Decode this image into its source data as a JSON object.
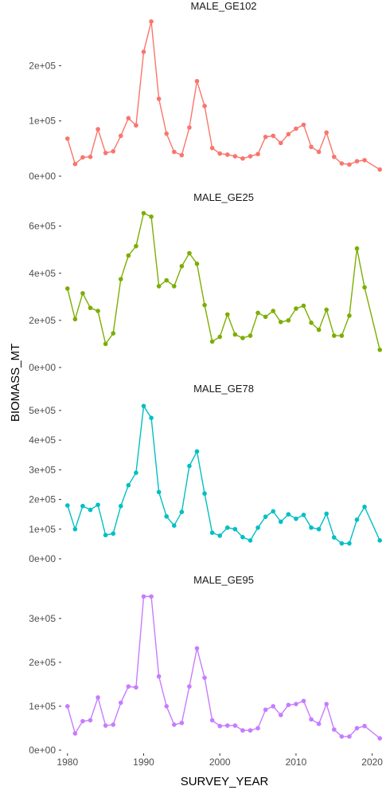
{
  "chart_data": {
    "type": "line",
    "layout": "faceted-vertical",
    "xlabel": "SURVEY_YEAR",
    "ylabel": "BIOMASS_MT",
    "x_ticks": [
      "1980",
      "1990",
      "2000",
      "2010",
      "2020"
    ],
    "xlim": [
      1979.5,
      2021.5
    ],
    "grid": false,
    "legend": "none",
    "x": [
      1980,
      1981,
      1982,
      1983,
      1984,
      1985,
      1986,
      1987,
      1988,
      1989,
      1990,
      1991,
      1992,
      1993,
      1994,
      1995,
      1996,
      1997,
      1998,
      1999,
      2000,
      2001,
      2002,
      2003,
      2004,
      2005,
      2006,
      2007,
      2008,
      2009,
      2010,
      2011,
      2012,
      2013,
      2014,
      2015,
      2016,
      2017,
      2018,
      2019,
      2021
    ],
    "series": [
      {
        "name": "MALE_GE102",
        "color": "#F8766D",
        "ylim": [
          0,
          290000
        ],
        "y_ticks": [
          {
            "value": 0,
            "label": "0e+00"
          },
          {
            "value": 100000,
            "label": "1e+05"
          },
          {
            "value": 200000,
            "label": "2e+05"
          }
        ],
        "values": [
          68000,
          22000,
          34000,
          35000,
          85000,
          42000,
          45000,
          73000,
          105000,
          92000,
          225000,
          280000,
          140000,
          77000,
          44000,
          38000,
          88000,
          172000,
          127000,
          51000,
          41000,
          39000,
          36000,
          32000,
          36000,
          40000,
          71000,
          73000,
          60000,
          76000,
          86000,
          93000,
          53000,
          44000,
          79000,
          35000,
          23000,
          21000,
          27000,
          29000,
          12000
        ]
      },
      {
        "name": "MALE_GE25",
        "color": "#7CAE00",
        "ylim": [
          0,
          680000
        ],
        "y_ticks": [
          {
            "value": 0,
            "label": "0e+00"
          },
          {
            "value": 200000,
            "label": "2e+05"
          },
          {
            "value": 400000,
            "label": "4e+05"
          },
          {
            "value": 600000,
            "label": "6e+05"
          }
        ],
        "values": [
          335000,
          205000,
          315000,
          253000,
          240000,
          100000,
          145000,
          375000,
          475000,
          515000,
          655000,
          640000,
          345000,
          370000,
          345000,
          430000,
          485000,
          440000,
          265000,
          110000,
          130000,
          225000,
          140000,
          125000,
          135000,
          232000,
          215000,
          240000,
          193000,
          200000,
          250000,
          262000,
          190000,
          160000,
          245000,
          135000,
          135000,
          220000,
          505000,
          340000,
          75000
        ]
      },
      {
        "name": "MALE_GE78",
        "color": "#00BFC4",
        "ylim": [
          0,
          540000
        ],
        "y_ticks": [
          {
            "value": 0,
            "label": "0e+00"
          },
          {
            "value": 100000,
            "label": "1e+05"
          },
          {
            "value": 200000,
            "label": "2e+05"
          },
          {
            "value": 300000,
            "label": "3e+05"
          },
          {
            "value": 400000,
            "label": "4e+05"
          },
          {
            "value": 500000,
            "label": "5e+05"
          }
        ],
        "values": [
          180000,
          100000,
          178000,
          165000,
          182000,
          80000,
          85000,
          178000,
          248000,
          290000,
          515000,
          475000,
          225000,
          143000,
          112000,
          158000,
          313000,
          362000,
          220000,
          88000,
          78000,
          105000,
          100000,
          73000,
          62000,
          105000,
          142000,
          160000,
          125000,
          150000,
          135000,
          148000,
          105000,
          100000,
          152000,
          72000,
          52000,
          52000,
          132000,
          175000,
          62000
        ]
      },
      {
        "name": "MALE_GE95",
        "color": "#C77CFF",
        "ylim": [
          0,
          365000
        ],
        "y_ticks": [
          {
            "value": 0,
            "label": "0e+00"
          },
          {
            "value": 100000,
            "label": "1e+05"
          },
          {
            "value": 200000,
            "label": "2e+05"
          },
          {
            "value": 300000,
            "label": "3e+05"
          }
        ],
        "values": [
          100000,
          38000,
          66000,
          68000,
          120000,
          56000,
          58000,
          108000,
          145000,
          143000,
          350000,
          350000,
          168000,
          100000,
          58000,
          62000,
          145000,
          232000,
          165000,
          68000,
          55000,
          56000,
          56000,
          45000,
          45000,
          50000,
          92000,
          100000,
          80000,
          103000,
          105000,
          112000,
          70000,
          60000,
          105000,
          47000,
          31000,
          31000,
          50000,
          55000,
          27000
        ]
      }
    ]
  }
}
